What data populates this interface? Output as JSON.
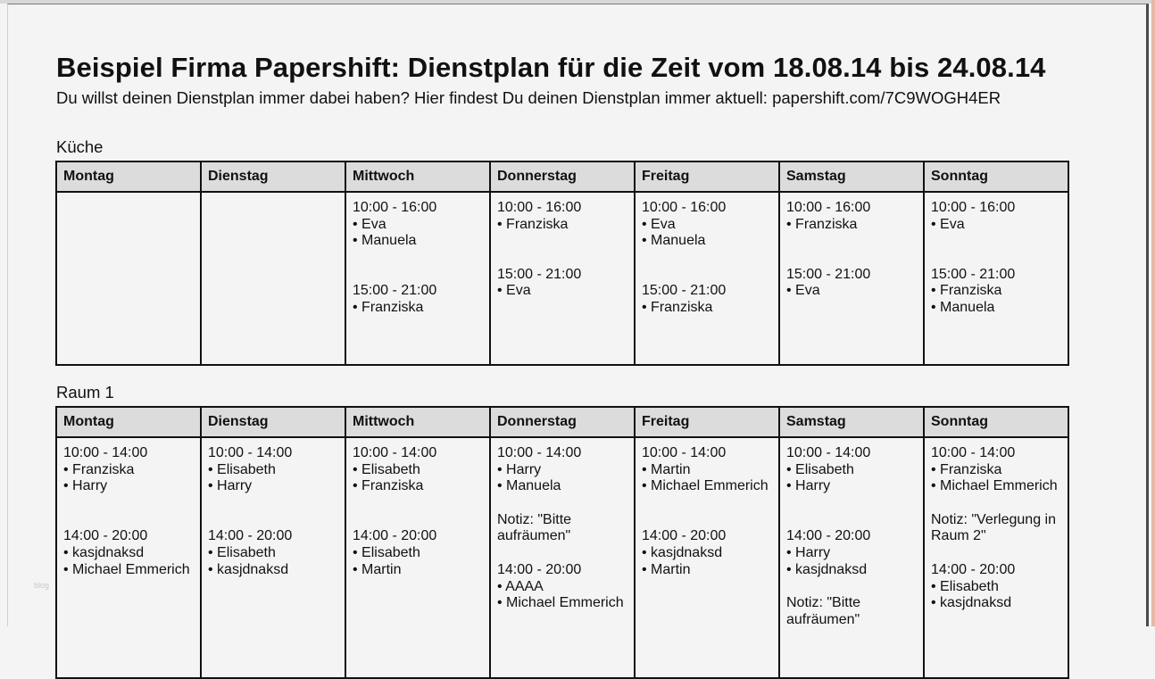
{
  "title": "Beispiel Firma Papershift: Dienstplan für die Zeit vom 18.08.14 bis 24.08.14",
  "subtitle": "Du willst deinen Dienstplan immer dabei haben? Hier findest Du deinen Dienstplan immer aktuell: papershift.com/7C9WOGH4ER",
  "watermark": "blog",
  "days": [
    "Montag",
    "Dienstag",
    "Mittwoch",
    "Donnerstag",
    "Freitag",
    "Samstag",
    "Sonntag"
  ],
  "sections": [
    {
      "name": "Küche",
      "cells": [
        [],
        [],
        [
          "10:00 - 16:00",
          "• Eva",
          "• Manuela",
          "",
          "",
          "15:00 - 21:00",
          "• Franziska"
        ],
        [
          "10:00 - 16:00",
          "• Franziska",
          "",
          "",
          "15:00 - 21:00",
          "• Eva"
        ],
        [
          "10:00 - 16:00",
          "• Eva",
          "• Manuela",
          "",
          "",
          "15:00 - 21:00",
          "• Franziska"
        ],
        [
          "10:00 - 16:00",
          "• Franziska",
          "",
          "",
          "15:00 - 21:00",
          "• Eva"
        ],
        [
          "10:00 - 16:00",
          "• Eva",
          "",
          "",
          "15:00 - 21:00",
          "• Franziska",
          "• Manuela"
        ]
      ]
    },
    {
      "name": "Raum 1",
      "cells": [
        [
          "10:00 - 14:00",
          "• Franziska",
          "• Harry",
          "",
          "",
          "14:00 - 20:00",
          "• kasjdnaksd",
          "• Michael Emmerich"
        ],
        [
          "10:00 - 14:00",
          "• Elisabeth",
          "• Harry",
          "",
          "",
          "14:00 - 20:00",
          "• Elisabeth",
          "• kasjdnaksd"
        ],
        [
          "10:00 - 14:00",
          "• Elisabeth",
          "• Franziska",
          "",
          "",
          "14:00 - 20:00",
          "• Elisabeth",
          "• Martin"
        ],
        [
          "10:00 - 14:00",
          "• Harry",
          "• Manuela",
          "",
          "Notiz: \"Bitte",
          "aufräumen\"",
          "",
          "14:00 - 20:00",
          "• AAAA",
          "• Michael Emmerich"
        ],
        [
          "10:00 - 14:00",
          "• Martin",
          "• Michael Emmerich",
          "",
          "",
          "14:00 - 20:00",
          "• kasjdnaksd",
          "• Martin"
        ],
        [
          "10:00 - 14:00",
          "• Elisabeth",
          "• Harry",
          "",
          "",
          "14:00 - 20:00",
          "• Harry",
          "• kasjdnaksd",
          "",
          "Notiz: \"Bitte",
          "aufräumen\""
        ],
        [
          "10:00 - 14:00",
          "• Franziska",
          "• Michael Emmerich",
          "",
          "Notiz: \"Verlegung in",
          "Raum 2\"",
          "",
          "14:00 - 20:00",
          "• Elisabeth",
          "• kasjdnaksd"
        ]
      ]
    }
  ]
}
